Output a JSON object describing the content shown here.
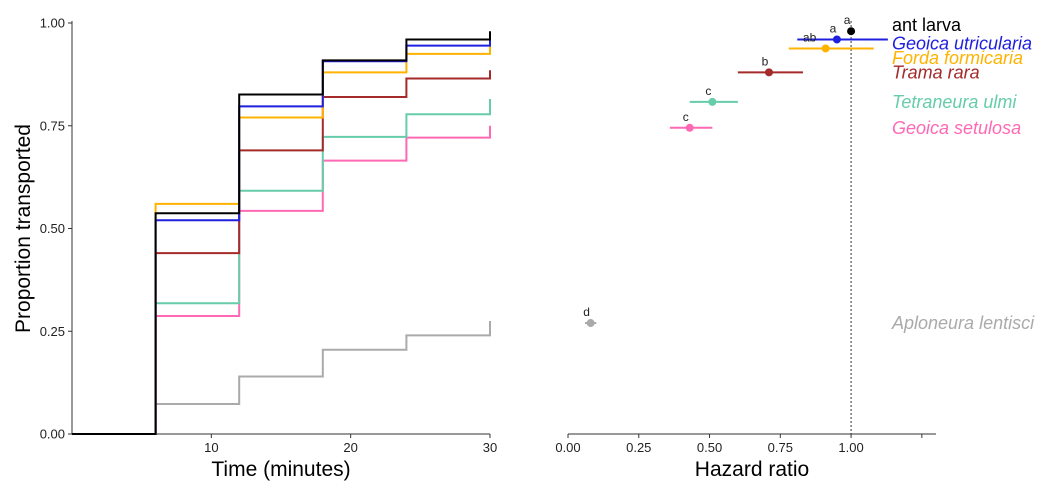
{
  "chart_data": [
    {
      "type": "line",
      "step": true,
      "xlabel": "Time (minutes)",
      "ylabel": "Proportion transported",
      "xlim": [
        0,
        30
      ],
      "ylim": [
        0,
        1
      ],
      "xticks": [
        "10",
        "20",
        "30"
      ],
      "yticks": [
        "0.00",
        "0.25",
        "0.50",
        "0.75",
        "1.00"
      ],
      "grid": false,
      "x": [
        0,
        6,
        12,
        18,
        24,
        30
      ],
      "series": [
        {
          "name": "ant larva",
          "color": "#000000",
          "values": [
            0,
            0.537,
            0.826,
            0.909,
            0.96,
            0.98
          ]
        },
        {
          "name": "Geoica utricularia",
          "color": "#1f1fe0",
          "values": [
            0,
            0.52,
            0.797,
            0.907,
            0.945,
            0.96
          ]
        },
        {
          "name": "Forda formicaria",
          "color": "#ffb300",
          "values": [
            0,
            0.56,
            0.77,
            0.88,
            0.925,
            0.945
          ]
        },
        {
          "name": "Trama rara",
          "color": "#a52a2a",
          "values": [
            0,
            0.44,
            0.69,
            0.82,
            0.865,
            0.885
          ]
        },
        {
          "name": "Tetraneura ulmi",
          "color": "#66ccaa",
          "values": [
            0,
            0.318,
            0.592,
            0.723,
            0.778,
            0.815
          ]
        },
        {
          "name": "Geoica setulosa",
          "color": "#ff69b4",
          "values": [
            0,
            0.287,
            0.543,
            0.665,
            0.721,
            0.75
          ]
        },
        {
          "name": "Aploneura lentisci",
          "color": "#aaaaaa",
          "values": [
            0,
            0.073,
            0.14,
            0.205,
            0.24,
            0.275
          ]
        }
      ]
    },
    {
      "type": "scatter",
      "xlabel": "Hazard ratio",
      "xlim": [
        0,
        1.3
      ],
      "ylim": [
        0,
        1
      ],
      "xticks": [
        "0.00",
        "0.25",
        "0.50",
        "0.75",
        "1.00"
      ],
      "reference_line": 1.0,
      "grid": false,
      "points": [
        {
          "name": "ant larva",
          "color": "#000000",
          "y": 0.98,
          "estimate": 1.0,
          "lower": 1.0,
          "upper": 1.0,
          "group_label": "a"
        },
        {
          "name": "Geoica utricularia",
          "color": "#1f1fe0",
          "y": 0.96,
          "estimate": 0.95,
          "lower": 0.81,
          "upper": 1.13,
          "group_label": "a"
        },
        {
          "name": "Forda formicaria",
          "color": "#ffb300",
          "y": 0.938,
          "estimate": 0.91,
          "lower": 0.78,
          "upper": 1.08,
          "group_label": "ab"
        },
        {
          "name": "Trama rara",
          "color": "#a52a2a",
          "y": 0.88,
          "estimate": 0.71,
          "lower": 0.6,
          "upper": 0.83,
          "group_label": "b"
        },
        {
          "name": "Tetraneura ulmi",
          "color": "#66ccaa",
          "y": 0.808,
          "estimate": 0.51,
          "lower": 0.43,
          "upper": 0.6,
          "group_label": "c"
        },
        {
          "name": "Geoica setulosa",
          "color": "#ff69b4",
          "y": 0.745,
          "estimate": 0.43,
          "lower": 0.36,
          "upper": 0.51,
          "group_label": "c"
        },
        {
          "name": "Aploneura lentisci",
          "color": "#aaaaaa",
          "y": 0.27,
          "estimate": 0.08,
          "lower": 0.06,
          "upper": 0.1,
          "group_label": "d"
        }
      ]
    }
  ],
  "legend": [
    {
      "label": "ant larva",
      "color": "#000000",
      "italic": false,
      "y": 0.995
    },
    {
      "label": "Geoica utricularia",
      "color": "#1f1fe0",
      "italic": true,
      "y": 0.95
    },
    {
      "label": "Forda formicaria",
      "color": "#ffb300",
      "italic": true,
      "y": 0.915
    },
    {
      "label": "Trama rara",
      "color": "#a52a2a",
      "italic": true,
      "y": 0.88
    },
    {
      "label": "Tetraneura ulmi",
      "color": "#66ccaa",
      "italic": true,
      "y": 0.808
    },
    {
      "label": "Geoica setulosa",
      "color": "#ff69b4",
      "italic": true,
      "y": 0.745
    },
    {
      "label": "Aploneura lentisci",
      "color": "#aaaaaa",
      "italic": true,
      "y": 0.27
    }
  ]
}
